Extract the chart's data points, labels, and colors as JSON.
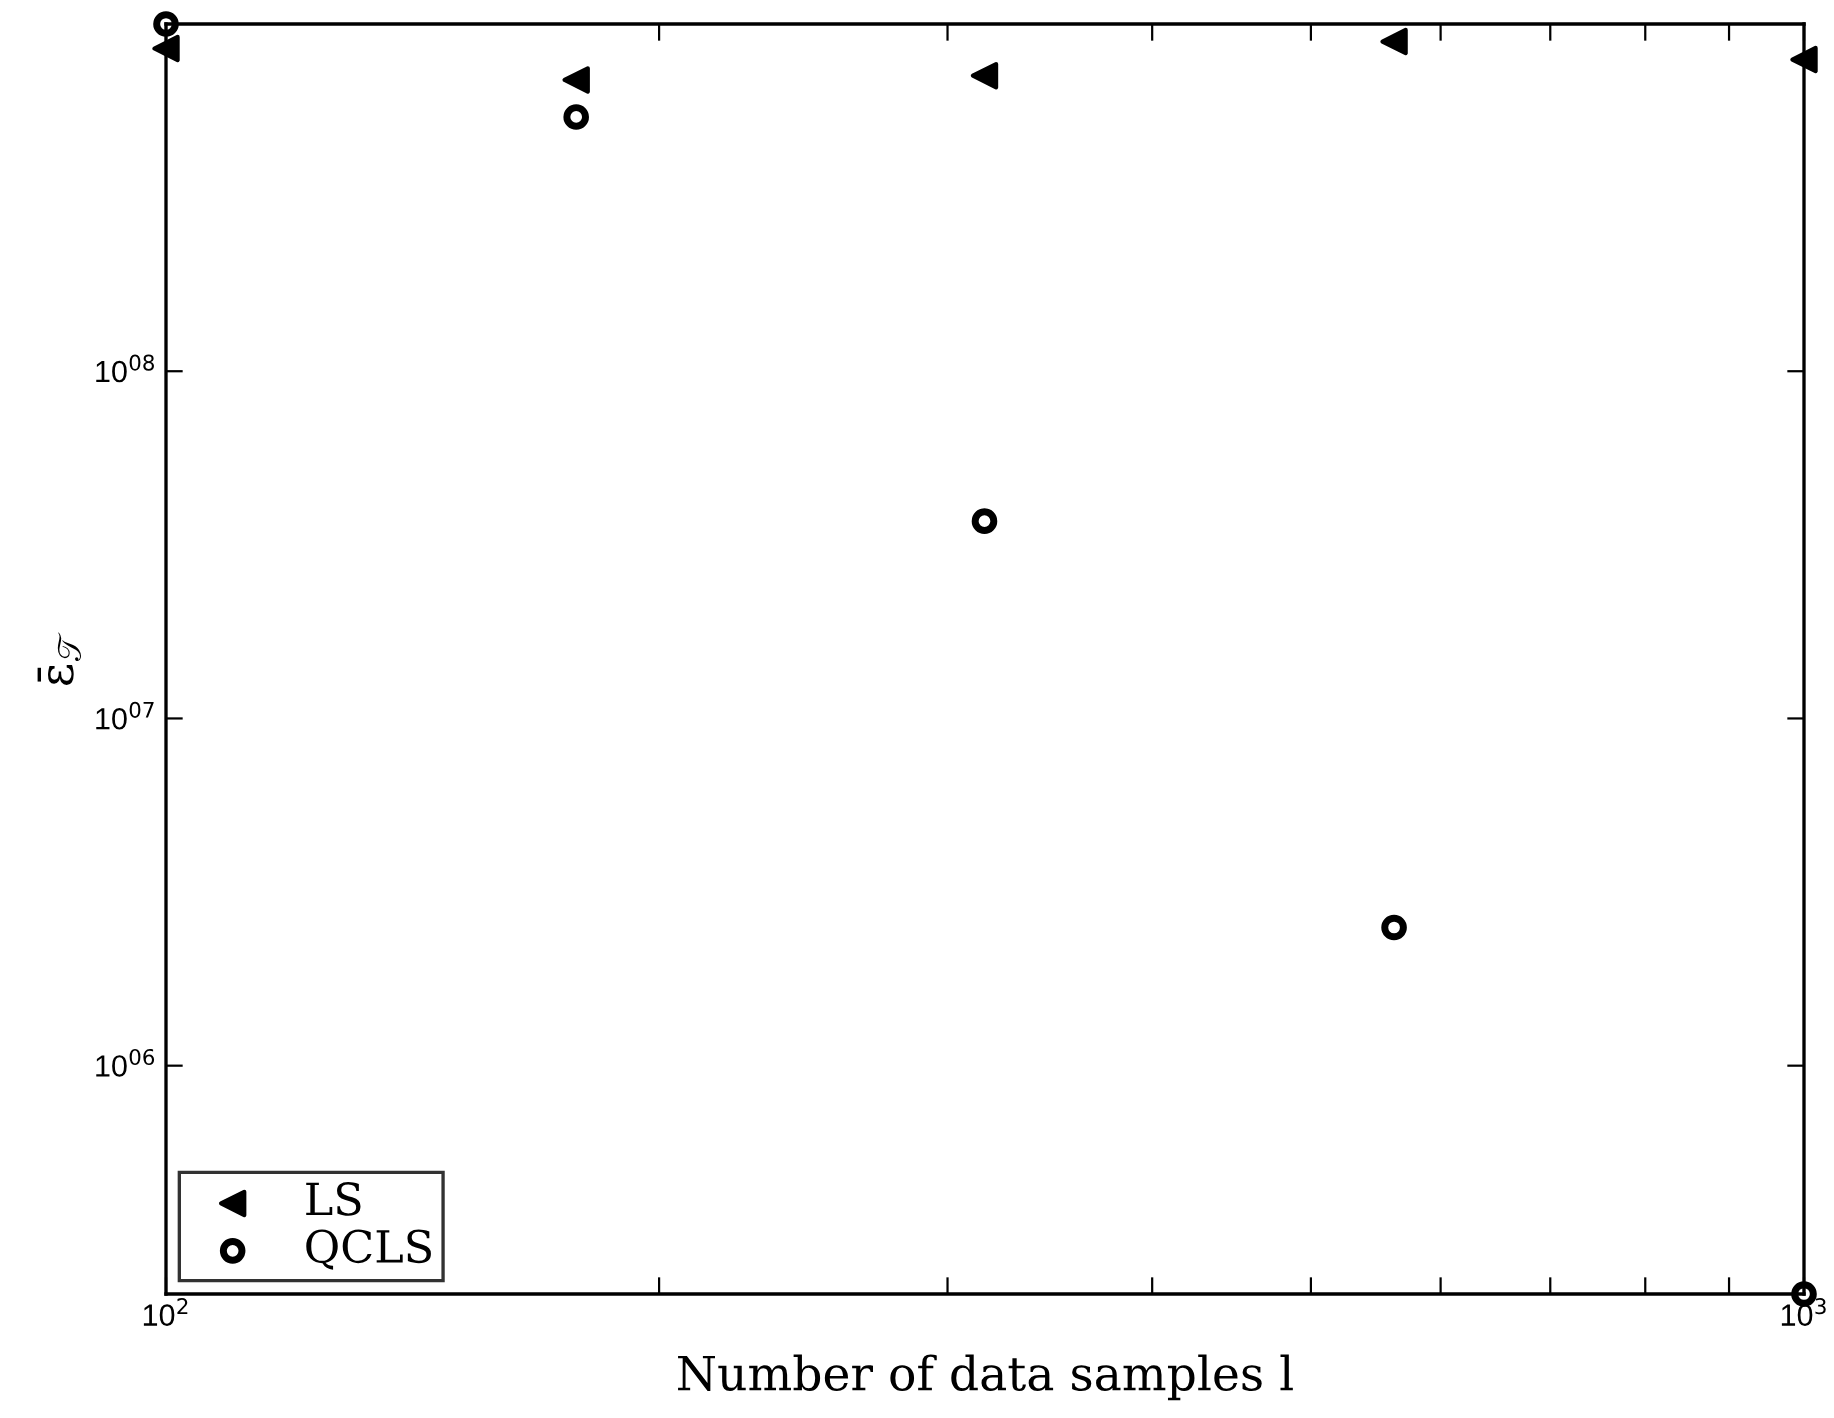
{
  "chart_data": {
    "type": "scatter",
    "xlabel": "Number of data samples l",
    "ylabel": "ε̄$_{𝒯}$",
    "log": "xy",
    "xlim": [
      100,
      1000
    ],
    "ylim": [
      220000,
      1000000000
    ],
    "xticks": [
      {
        "value": 100,
        "label": "10$^{2}$"
      },
      {
        "value": 200,
        "label": null
      },
      {
        "value": 300,
        "label": null
      },
      {
        "value": 400,
        "label": null
      },
      {
        "value": 500,
        "label": null
      },
      {
        "value": 600,
        "label": null
      },
      {
        "value": 700,
        "label": null
      },
      {
        "value": 800,
        "label": null
      },
      {
        "value": 900,
        "label": null
      },
      {
        "value": 1000,
        "label": "10$^{3}$"
      }
    ],
    "yticks": [
      {
        "value": 1000000,
        "label": "10$^{06}$"
      },
      {
        "value": 10000000,
        "label": "10$^{07}$"
      },
      {
        "value": 100000000,
        "label": "10$^{08}$"
      }
    ],
    "x": [
      100,
      178,
      316,
      562,
      1000
    ],
    "series": [
      {
        "name": "LS",
        "color": "#000000",
        "marker": "triangle",
        "values": [
          850000000,
          690000000,
          710000000,
          890000000,
          790000000
        ]
      },
      {
        "name": "QCLS",
        "color": "#000000",
        "marker": "circle",
        "values": [
          1000000000,
          540000000,
          37000000,
          2500000,
          220000
        ]
      }
    ],
    "grid": false,
    "legend": "bottom left"
  }
}
